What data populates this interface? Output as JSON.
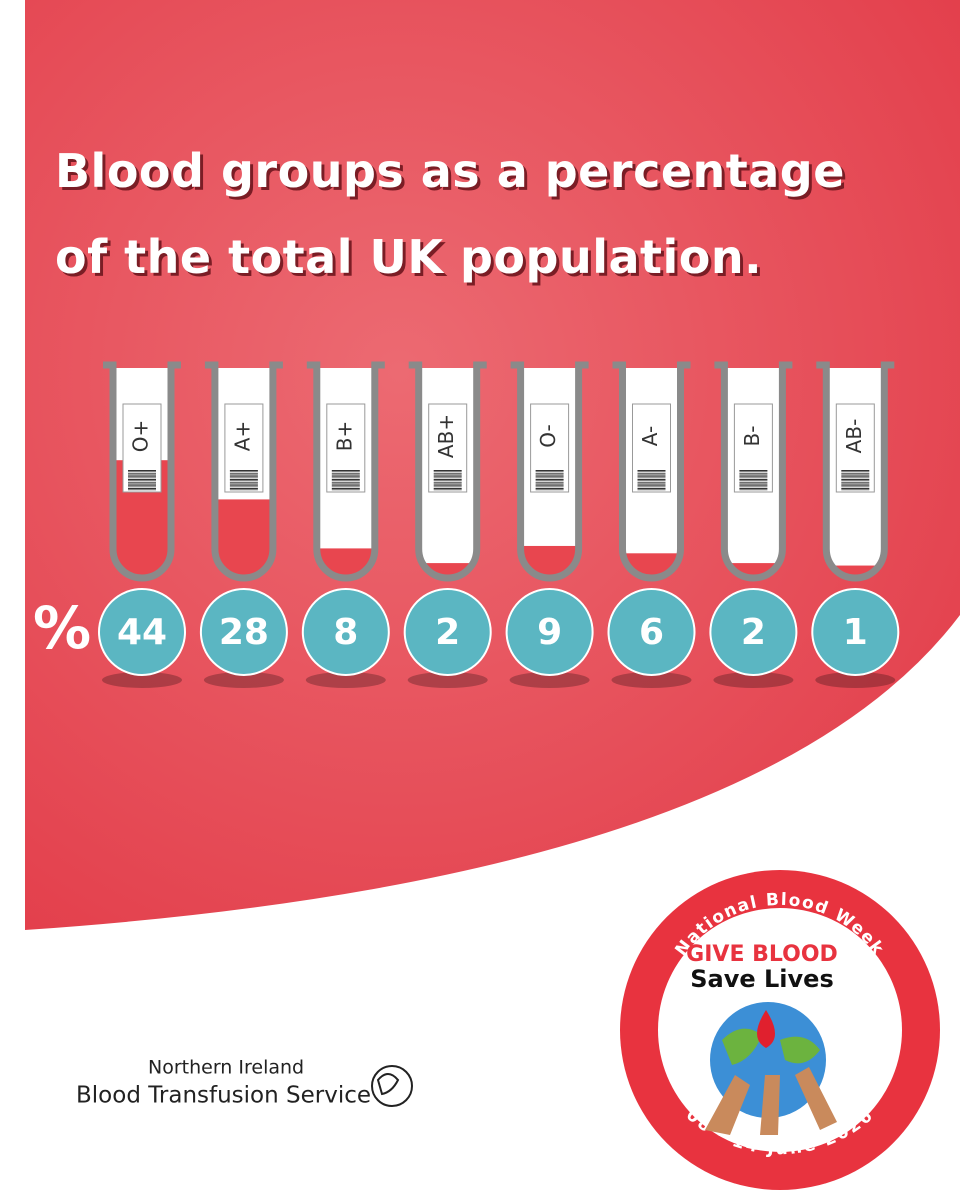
{
  "chart_data": {
    "type": "tube",
    "title": "Blood groups as a percentage of the total UK population.",
    "unit_symbol": "%",
    "categories": [
      "O+",
      "A+",
      "B+",
      "AB+",
      "O-",
      "A-",
      "B-",
      "AB-"
    ],
    "values": [
      44,
      28,
      8,
      2,
      9,
      6,
      2,
      1
    ],
    "color": "#e8464f",
    "badge_color": "#5bb6c2"
  },
  "footer": {
    "line1": "Northern Ireland",
    "line2": "Blood Transfusion Service"
  },
  "badge": {
    "arc_top": "National Blood Week",
    "headline": "GIVE BLOOD",
    "tagline": "Save Lives",
    "arc_bottom": "08 - 14 June 2026"
  }
}
